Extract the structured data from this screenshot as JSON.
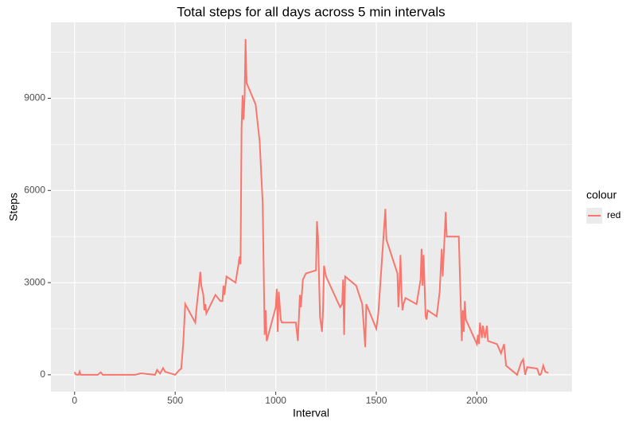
{
  "chart_data": {
    "type": "line",
    "title": "Total steps for all days across 5 min intervals",
    "x_label": "Interval",
    "y_label": "Steps",
    "x": [
      0,
      5,
      10,
      20,
      25,
      30,
      100,
      115,
      130,
      140,
      200,
      250,
      300,
      330,
      400,
      410,
      425,
      440,
      450,
      500,
      520,
      530,
      540,
      550,
      600,
      605,
      615,
      625,
      630,
      640,
      645,
      650,
      655,
      700,
      725,
      735,
      740,
      745,
      750,
      755,
      800,
      815,
      820,
      825,
      830,
      835,
      840,
      845,
      850,
      855,
      900,
      920,
      935,
      945,
      950,
      955,
      1000,
      1005,
      1010,
      1015,
      1025,
      1030,
      1100,
      1105,
      1110,
      1120,
      1125,
      1135,
      1150,
      1200,
      1205,
      1210,
      1220,
      1230,
      1235,
      1240,
      1250,
      1320,
      1330,
      1335,
      1340,
      1345,
      1400,
      1430,
      1445,
      1450,
      1500,
      1510,
      1545,
      1550,
      1600,
      1605,
      1610,
      1615,
      1620,
      1625,
      1630,
      1635,
      1645,
      1700,
      1720,
      1725,
      1730,
      1735,
      1745,
      1750,
      1755,
      1800,
      1815,
      1825,
      1830,
      1845,
      1850,
      1900,
      1910,
      1925,
      1930,
      1935,
      1940,
      1945,
      2000,
      2005,
      2010,
      2015,
      2025,
      2030,
      2040,
      2050,
      2055,
      2100,
      2120,
      2135,
      2145,
      2200,
      2220,
      2230,
      2240,
      2250,
      2300,
      2310,
      2315,
      2320,
      2330,
      2340,
      2355
    ],
    "series": [
      {
        "name": "red",
        "color": "#F8766D",
        "values": [
          91,
          18,
          7,
          0,
          102,
          0,
          0,
          0,
          81,
          0,
          0,
          0,
          0,
          50,
          0,
          160,
          40,
          220,
          100,
          0,
          150,
          200,
          1000,
          2300,
          1700,
          2100,
          2700,
          3350,
          2900,
          2600,
          2100,
          2300,
          2000,
          2600,
          2400,
          2400,
          2900,
          2600,
          2900,
          3200,
          3000,
          3600,
          3850,
          3600,
          8000,
          9100,
          8300,
          9000,
          10927,
          9500,
          8800,
          7600,
          5600,
          1300,
          2100,
          1100,
          2200,
          2800,
          1400,
          2700,
          1800,
          1700,
          1700,
          1400,
          1100,
          2600,
          2200,
          3100,
          3300,
          3400,
          5000,
          4500,
          1900,
          1400,
          2100,
          3550,
          3200,
          2200,
          2300,
          3100,
          1300,
          3200,
          2900,
          2300,
          900,
          2300,
          1500,
          2000,
          5400,
          4400,
          3400,
          3300,
          2200,
          2900,
          3900,
          2700,
          2100,
          2300,
          2500,
          2300,
          3100,
          4100,
          2900,
          3900,
          1900,
          1800,
          2100,
          1900,
          2700,
          4100,
          3200,
          5300,
          4500,
          4500,
          4500,
          1100,
          2100,
          1400,
          2400,
          1800,
          1000,
          1300,
          1000,
          1700,
          1200,
          1600,
          1200,
          1600,
          1100,
          1000,
          700,
          1000,
          300,
          0,
          400,
          500,
          0,
          250,
          200,
          0,
          0,
          50,
          300,
          100,
          60
        ]
      }
    ],
    "xlim": [
      -117.75,
      2472.75
    ],
    "ylim": [
      -546.35,
      11473.35
    ],
    "xticks": [
      0,
      500,
      1000,
      1500,
      2000
    ],
    "yticks": [
      0,
      3000,
      6000,
      9000
    ],
    "x_minor_breaks": [
      250,
      750,
      1250,
      1750,
      2250
    ],
    "y_minor_breaks": [
      1500,
      4500,
      7500,
      10500
    ],
    "grid": true,
    "legend_title": "colour",
    "legend_position": "right"
  }
}
